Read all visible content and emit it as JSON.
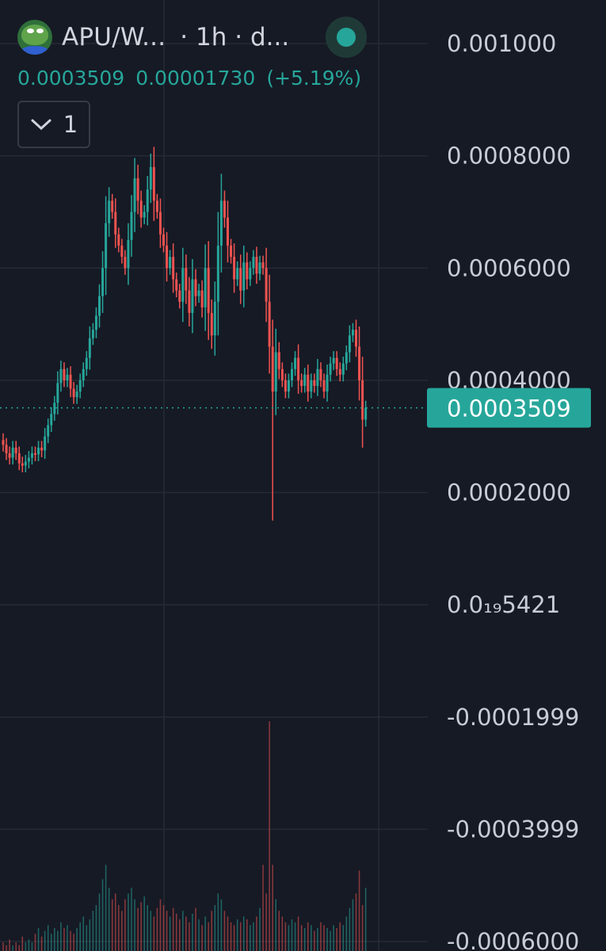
{
  "header": {
    "symbol": "APU/W...",
    "interval": "· 1h · d...",
    "price": "0.0003509",
    "change": "0.00001730",
    "change_pct": "(+5.19%)",
    "collapse_count": "1"
  },
  "colors": {
    "up": "#26a69a",
    "down": "#ef5350",
    "background": "#161a25",
    "grid": "#262a35"
  },
  "icons": {
    "logo": "frog-logo-icon",
    "status": "market-status-dot-icon",
    "collapse": "chevron-down-icon"
  },
  "chart_data": {
    "type": "candlestick",
    "title": "APU/W... · 1h · d...",
    "y_ticks": [
      "0.001000",
      "0.0008000",
      "0.0006000",
      "0.0004000",
      "0.0002000",
      "0.0₁₉5421",
      "-0.0001999",
      "-0.0003999",
      "-0.0006000"
    ],
    "ylim": [
      -0.0006,
      0.001
    ],
    "last_price": 0.0003509,
    "last_price_label": "0.0003509",
    "grid": true,
    "close": [
      0.000285,
      0.00027,
      0.000262,
      0.00028,
      0.00027,
      0.000252,
      0.000248,
      0.000255,
      0.000262,
      0.00027,
      0.000268,
      0.00028,
      0.000275,
      0.0003,
      0.00032,
      0.00034,
      0.00036,
      0.000395,
      0.00042,
      0.0004,
      0.00041,
      0.000385,
      0.00037,
      0.00038,
      0.0004,
      0.00042,
      0.00044,
      0.000475,
      0.00049,
      0.000515,
      0.00055,
      0.0006,
      0.00068,
      0.00072,
      0.0007,
      0.00066,
      0.00064,
      0.00062,
      0.0006,
      0.00065,
      0.0007,
      0.00076,
      0.00072,
      0.00069,
      0.0007,
      0.00074,
      0.00078,
      0.00072,
      0.0007,
      0.00066,
      0.00064,
      0.0006,
      0.00062,
      0.00058,
      0.00056,
      0.00054,
      0.0006,
      0.00056,
      0.00052,
      0.00058,
      0.00055,
      0.00056,
      0.00053,
      0.0006,
      0.00052,
      0.00048,
      0.00054,
      0.00064,
      0.00072,
      0.00069,
      0.00064,
      0.00062,
      0.00058,
      0.0006,
      0.00056,
      0.00061,
      0.00058,
      0.0006,
      0.00062,
      0.00059,
      0.00061,
      0.0006,
      0.00054,
      0.00046,
      0.00038,
      0.00045,
      0.00042,
      0.0004,
      0.00038,
      0.0004,
      0.00042,
      0.00044,
      0.0004,
      0.00039,
      0.00041,
      0.00038,
      0.0004,
      0.00039,
      0.00042,
      0.0004,
      0.00038,
      0.00041,
      0.00043,
      0.00044,
      0.00042,
      0.00041,
      0.00043,
      0.00045,
      0.00048,
      0.00049,
      0.00046,
      0.0004,
      0.00033,
      0.000351
    ],
    "volume": [
      3,
      2,
      4,
      2,
      3,
      2,
      5,
      3,
      4,
      3,
      6,
      8,
      5,
      7,
      9,
      6,
      8,
      7,
      10,
      8,
      9,
      7,
      6,
      8,
      10,
      12,
      9,
      11,
      14,
      16,
      20,
      25,
      30,
      22,
      18,
      20,
      16,
      14,
      18,
      20,
      22,
      18,
      15,
      17,
      19,
      16,
      14,
      12,
      15,
      18,
      16,
      14,
      12,
      15,
      13,
      11,
      14,
      12,
      10,
      13,
      15,
      11,
      9,
      12,
      10,
      14,
      16,
      20,
      18,
      14,
      12,
      10,
      9,
      11,
      10,
      12,
      11,
      9,
      10,
      12,
      15,
      30,
      20,
      80,
      30,
      18,
      14,
      12,
      10,
      9,
      11,
      10,
      12,
      9,
      8,
      10,
      9,
      7,
      8,
      10,
      9,
      8,
      7,
      9,
      8,
      10,
      9,
      12,
      15,
      18,
      20,
      28,
      16,
      22
    ]
  }
}
